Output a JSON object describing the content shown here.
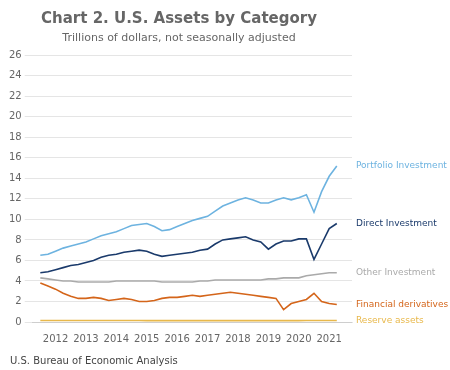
{
  "chart_data": {
    "type": "line",
    "title": "Chart 2. U.S. Assets by Category",
    "subtitle": "Trillions of dollars, not seasonally adjusted",
    "footer": "U.S. Bureau of Economic Analysis",
    "x": [
      2011.5,
      2011.75,
      2012.0,
      2012.25,
      2012.5,
      2012.75,
      2013.0,
      2013.25,
      2013.5,
      2013.75,
      2014.0,
      2014.25,
      2014.5,
      2014.75,
      2015.0,
      2015.25,
      2015.5,
      2015.75,
      2016.0,
      2016.25,
      2016.5,
      2016.75,
      2017.0,
      2017.25,
      2017.5,
      2017.75,
      2018.0,
      2018.25,
      2018.5,
      2018.75,
      2019.0,
      2019.25,
      2019.5,
      2019.75,
      2020.0,
      2020.25,
      2020.5,
      2020.75,
      2021.0,
      2021.25
    ],
    "series": [
      {
        "name": "Portfolio Investment",
        "color": "#6db3e0",
        "values": [
          6.5,
          6.6,
          6.9,
          7.2,
          7.4,
          7.6,
          7.8,
          8.1,
          8.4,
          8.6,
          8.8,
          9.1,
          9.4,
          9.5,
          9.6,
          9.3,
          8.9,
          9.0,
          9.3,
          9.6,
          9.9,
          10.1,
          10.3,
          10.8,
          11.3,
          11.6,
          11.9,
          12.1,
          11.9,
          11.6,
          11.6,
          11.9,
          12.1,
          11.9,
          12.1,
          12.4,
          10.7,
          12.7,
          14.2,
          15.2
        ]
      },
      {
        "name": "Direct Investment",
        "color": "#1a3a6b",
        "values": [
          4.8,
          4.9,
          5.1,
          5.3,
          5.5,
          5.6,
          5.8,
          6.0,
          6.3,
          6.5,
          6.6,
          6.8,
          6.9,
          7.0,
          6.9,
          6.6,
          6.4,
          6.5,
          6.6,
          6.7,
          6.8,
          7.0,
          7.1,
          7.6,
          8.0,
          8.1,
          8.2,
          8.3,
          8.0,
          7.8,
          7.1,
          7.6,
          7.9,
          7.9,
          8.1,
          8.1,
          6.1,
          7.6,
          9.1,
          9.6
        ]
      },
      {
        "name": "Other Investment",
        "color": "#aaaaaa",
        "values": [
          4.3,
          4.2,
          4.1,
          4.0,
          4.0,
          3.9,
          3.9,
          3.9,
          3.9,
          3.9,
          4.0,
          4.0,
          4.0,
          4.0,
          4.0,
          4.0,
          3.9,
          3.9,
          3.9,
          3.9,
          3.9,
          4.0,
          4.0,
          4.1,
          4.1,
          4.1,
          4.1,
          4.1,
          4.1,
          4.1,
          4.2,
          4.2,
          4.3,
          4.3,
          4.3,
          4.5,
          4.6,
          4.7,
          4.8,
          4.8
        ]
      },
      {
        "name": "Financial derivatives",
        "color": "#d4651a",
        "values": [
          3.8,
          3.5,
          3.2,
          2.8,
          2.5,
          2.3,
          2.3,
          2.4,
          2.3,
          2.1,
          2.2,
          2.3,
          2.2,
          2.0,
          2.0,
          2.1,
          2.3,
          2.4,
          2.4,
          2.5,
          2.6,
          2.5,
          2.6,
          2.7,
          2.8,
          2.9,
          2.8,
          2.7,
          2.6,
          2.5,
          2.4,
          2.3,
          1.2,
          1.8,
          2.0,
          2.2,
          2.8,
          2.0,
          1.8,
          1.7
        ]
      },
      {
        "name": "Reserve assets",
        "color": "#e8b84b",
        "values": [
          0.15,
          0.15,
          0.15,
          0.15,
          0.15,
          0.15,
          0.15,
          0.14,
          0.14,
          0.14,
          0.14,
          0.14,
          0.14,
          0.14,
          0.13,
          0.13,
          0.13,
          0.13,
          0.13,
          0.13,
          0.13,
          0.13,
          0.13,
          0.13,
          0.13,
          0.13,
          0.13,
          0.13,
          0.13,
          0.13,
          0.13,
          0.13,
          0.13,
          0.13,
          0.13,
          0.14,
          0.14,
          0.14,
          0.14,
          0.14
        ]
      }
    ],
    "xlim": [
      2011.25,
      2021.75
    ],
    "xticks": [
      2012,
      2013,
      2014,
      2015,
      2016,
      2017,
      2018,
      2019,
      2020,
      2021
    ],
    "ylim": [
      0,
      26
    ],
    "yticks": [
      0,
      2,
      4,
      6,
      8,
      10,
      12,
      14,
      16,
      18,
      20,
      22,
      24,
      26
    ],
    "grid": "y"
  }
}
